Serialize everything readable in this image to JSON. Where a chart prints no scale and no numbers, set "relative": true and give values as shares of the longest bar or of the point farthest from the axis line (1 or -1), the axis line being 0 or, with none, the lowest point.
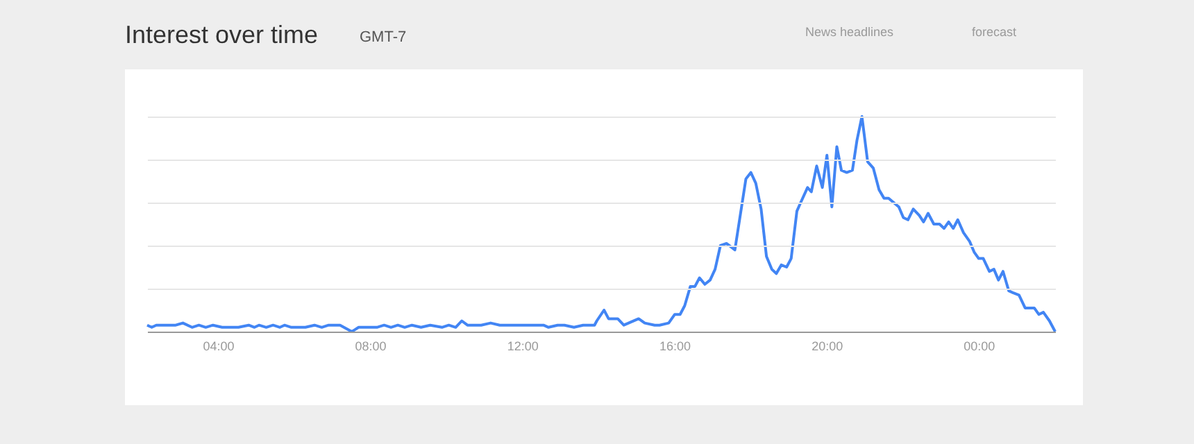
{
  "chart_data": {
    "type": "line",
    "title": "Interest over time",
    "subtitle": "GMT-7",
    "relative": true,
    "grid": "y",
    "annotations": [
      "News headlines",
      "forecast"
    ],
    "xlim": [
      2.14,
      26.01
    ],
    "xticks": [
      {
        "value": 4,
        "label": "04:00"
      },
      {
        "value": 8,
        "label": "08:00"
      },
      {
        "value": 12,
        "label": "12:00"
      },
      {
        "value": 16,
        "label": "16:00"
      },
      {
        "value": 20,
        "label": "20:00"
      },
      {
        "value": 24,
        "label": "00:00"
      }
    ],
    "series": [
      {
        "color": "#4285f4",
        "x": [
          2.14,
          2.26,
          2.38,
          2.89,
          3.08,
          3.32,
          3.5,
          3.68,
          3.87,
          4.11,
          4.54,
          4.81,
          4.96,
          5.08,
          5.27,
          5.45,
          5.63,
          5.75,
          5.93,
          6.3,
          6.54,
          6.73,
          6.91,
          7.21,
          7.52,
          7.7,
          8.18,
          8.37,
          8.55,
          8.73,
          8.91,
          9.1,
          9.34,
          9.58,
          9.89,
          10.07,
          10.25,
          10.41,
          10.56,
          10.92,
          11.17,
          11.41,
          11.65,
          11.83,
          12.02,
          12.56,
          12.69,
          12.93,
          13.11,
          13.36,
          13.6,
          13.78,
          13.9,
          13.96,
          14.15,
          14.27,
          14.51,
          14.67,
          15.06,
          15.22,
          15.48,
          15.61,
          15.85,
          16.01,
          16.15,
          16.27,
          16.42,
          16.54,
          16.66,
          16.8,
          16.94,
          17.07,
          17.21,
          17.37,
          17.59,
          17.88,
          18.01,
          18.14,
          18.28,
          18.42,
          18.56,
          18.68,
          18.81,
          18.95,
          19.07,
          19.22,
          19.32,
          19.5,
          19.6,
          19.74,
          19.89,
          20.01,
          20.14,
          20.27,
          20.39,
          20.53,
          20.68,
          20.8,
          20.93,
          21.08,
          21.23,
          21.38,
          21.51,
          21.63,
          21.9,
          22.02,
          22.14,
          22.28,
          22.44,
          22.55,
          22.67,
          22.82,
          22.97,
          23.09,
          23.21,
          23.33,
          23.45,
          23.6,
          23.76,
          23.88,
          24.0,
          24.12,
          24.28,
          24.4,
          24.52,
          24.64,
          24.79,
          24.91,
          25.06,
          25.22,
          25.34,
          25.46,
          25.58,
          25.7,
          25.86,
          26.01
        ],
        "values": [
          0.03,
          0.02,
          0.03,
          0.03,
          0.04,
          0.02,
          0.03,
          0.02,
          0.03,
          0.02,
          0.02,
          0.03,
          0.02,
          0.03,
          0.02,
          0.03,
          0.02,
          0.03,
          0.02,
          0.02,
          0.03,
          0.02,
          0.03,
          0.03,
          0.0,
          0.02,
          0.02,
          0.03,
          0.02,
          0.03,
          0.02,
          0.03,
          0.02,
          0.03,
          0.02,
          0.03,
          0.02,
          0.05,
          0.03,
          0.03,
          0.04,
          0.03,
          0.03,
          0.03,
          0.03,
          0.03,
          0.02,
          0.03,
          0.03,
          0.02,
          0.03,
          0.03,
          0.03,
          0.05,
          0.1,
          0.06,
          0.06,
          0.03,
          0.06,
          0.04,
          0.03,
          0.03,
          0.04,
          0.08,
          0.08,
          0.12,
          0.21,
          0.21,
          0.25,
          0.22,
          0.24,
          0.29,
          0.4,
          0.41,
          0.38,
          0.71,
          0.74,
          0.69,
          0.57,
          0.35,
          0.29,
          0.27,
          0.31,
          0.3,
          0.34,
          0.56,
          0.6,
          0.67,
          0.65,
          0.77,
          0.67,
          0.82,
          0.58,
          0.86,
          0.75,
          0.74,
          0.75,
          0.89,
          1.0,
          0.79,
          0.76,
          0.66,
          0.62,
          0.62,
          0.58,
          0.53,
          0.52,
          0.57,
          0.54,
          0.51,
          0.55,
          0.5,
          0.5,
          0.48,
          0.51,
          0.48,
          0.52,
          0.46,
          0.42,
          0.37,
          0.34,
          0.34,
          0.28,
          0.29,
          0.24,
          0.28,
          0.19,
          0.18,
          0.17,
          0.11,
          0.11,
          0.11,
          0.08,
          0.09,
          0.05,
          0.0
        ]
      }
    ]
  }
}
